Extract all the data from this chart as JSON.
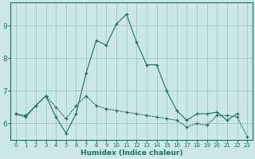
{
  "xlabel": "Humidex (Indice chaleur)",
  "bg_color": "#cce8e5",
  "line_color": "#1a6e65",
  "grid_color": "#aaccca",
  "xlim": [
    -0.5,
    23.5
  ],
  "ylim": [
    5.5,
    9.7
  ],
  "yticks": [
    6,
    7,
    8,
    9
  ],
  "xticks": [
    0,
    1,
    2,
    3,
    4,
    5,
    6,
    7,
    8,
    9,
    10,
    11,
    12,
    13,
    14,
    15,
    16,
    17,
    18,
    19,
    20,
    21,
    22,
    23
  ],
  "series1_x": [
    0,
    1,
    2,
    3,
    4,
    5,
    6,
    7,
    8,
    9,
    10,
    11,
    12,
    13,
    14,
    15,
    16,
    17,
    18,
    19,
    20,
    21,
    22
  ],
  "series1_y": [
    6.3,
    6.2,
    6.55,
    6.85,
    6.2,
    5.7,
    6.3,
    7.55,
    8.55,
    8.4,
    9.05,
    9.35,
    8.5,
    7.8,
    7.8,
    7.0,
    6.4,
    6.1,
    6.3,
    6.3,
    6.35,
    6.1,
    6.3
  ],
  "series2_x": [
    0,
    1,
    2,
    3,
    4,
    5,
    6,
    7,
    8,
    9,
    10,
    11,
    12,
    13,
    14,
    15,
    16,
    17,
    18,
    19,
    20,
    21,
    22,
    23
  ],
  "series2_y": [
    6.3,
    6.25,
    6.55,
    6.85,
    6.5,
    6.15,
    6.55,
    6.85,
    6.55,
    6.45,
    6.4,
    6.35,
    6.3,
    6.25,
    6.2,
    6.15,
    6.1,
    5.9,
    6.0,
    5.95,
    6.25,
    6.25,
    6.2,
    5.6
  ]
}
